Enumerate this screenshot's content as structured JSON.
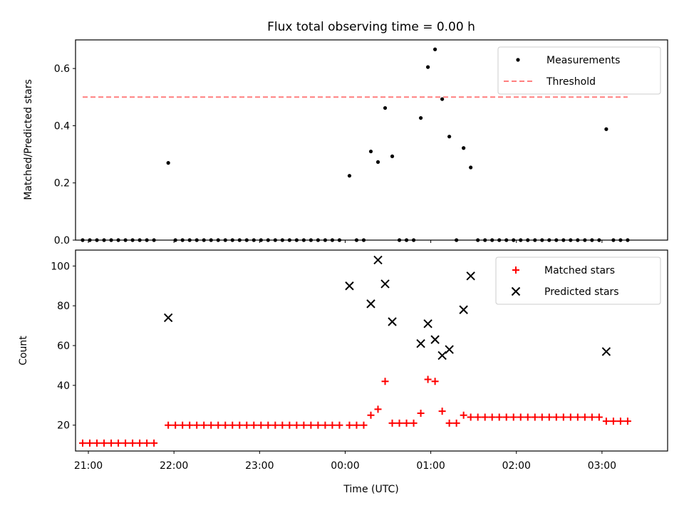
{
  "chart_data": [
    {
      "type": "scatter",
      "title": "Flux total observing time = 0.00 h",
      "xlabel": "",
      "ylabel": "Matched/Predicted stars",
      "xlim": [
        "20:51",
        "03:46"
      ],
      "ylim": [
        0,
        0.7
      ],
      "y_ticks": [
        0.0,
        0.2,
        0.4,
        0.6
      ],
      "y_tick_labels": [
        "0.0",
        "0.2",
        "0.4",
        "0.6"
      ],
      "x_tick_labels": [],
      "legend_position": "top-right",
      "series": [
        {
          "name": "Measurements",
          "marker": "dot",
          "color": "#000000",
          "points": [
            [
              "20:56",
              0
            ],
            [
              "21:01",
              0
            ],
            [
              "21:06",
              0
            ],
            [
              "21:11",
              0
            ],
            [
              "21:16",
              0
            ],
            [
              "21:21",
              0
            ],
            [
              "21:26",
              0
            ],
            [
              "21:31",
              0
            ],
            [
              "21:36",
              0
            ],
            [
              "21:41",
              0
            ],
            [
              "21:46",
              0
            ],
            [
              "21:56",
              0.27
            ],
            [
              "22:01",
              0
            ],
            [
              "22:06",
              0
            ],
            [
              "22:11",
              0
            ],
            [
              "22:16",
              0
            ],
            [
              "22:21",
              0
            ],
            [
              "22:26",
              0
            ],
            [
              "22:31",
              0
            ],
            [
              "22:36",
              0
            ],
            [
              "22:41",
              0
            ],
            [
              "22:46",
              0
            ],
            [
              "22:51",
              0
            ],
            [
              "22:56",
              0
            ],
            [
              "23:01",
              0
            ],
            [
              "23:06",
              0
            ],
            [
              "23:11",
              0
            ],
            [
              "23:16",
              0
            ],
            [
              "23:21",
              0
            ],
            [
              "23:26",
              0
            ],
            [
              "23:31",
              0
            ],
            [
              "23:36",
              0
            ],
            [
              "23:41",
              0
            ],
            [
              "23:46",
              0
            ],
            [
              "23:51",
              0
            ],
            [
              "23:56",
              0
            ],
            [
              "00:03",
              0.225
            ],
            [
              "00:08",
              0
            ],
            [
              "00:13",
              0
            ],
            [
              "00:18",
              0.31
            ],
            [
              "00:23",
              0.273
            ],
            [
              "00:28",
              0.462
            ],
            [
              "00:33",
              0.293
            ],
            [
              "00:38",
              0
            ],
            [
              "00:43",
              0
            ],
            [
              "00:48",
              0
            ],
            [
              "00:53",
              0.427
            ],
            [
              "00:58",
              0.605
            ],
            [
              "01:03",
              0.667
            ],
            [
              "01:08",
              0.493
            ],
            [
              "01:13",
              0.362
            ],
            [
              "01:18",
              0
            ],
            [
              "01:23",
              0.322
            ],
            [
              "01:28",
              0.254
            ],
            [
              "01:33",
              0
            ],
            [
              "01:38",
              0
            ],
            [
              "01:43",
              0
            ],
            [
              "01:48",
              0
            ],
            [
              "01:53",
              0
            ],
            [
              "01:58",
              0
            ],
            [
              "02:03",
              0
            ],
            [
              "02:08",
              0
            ],
            [
              "02:13",
              0
            ],
            [
              "02:18",
              0
            ],
            [
              "02:23",
              0
            ],
            [
              "02:28",
              0
            ],
            [
              "02:33",
              0
            ],
            [
              "02:38",
              0
            ],
            [
              "02:43",
              0
            ],
            [
              "02:48",
              0
            ],
            [
              "02:53",
              0
            ],
            [
              "02:58",
              0
            ],
            [
              "03:03",
              0.388
            ],
            [
              "03:08",
              0
            ],
            [
              "03:13",
              0
            ],
            [
              "03:18",
              0
            ]
          ]
        },
        {
          "name": "Threshold",
          "marker": "dashed-line",
          "color": "#ff7f7f",
          "points": [
            [
              "20:56",
              0.5
            ],
            [
              "03:18",
              0.5
            ]
          ]
        }
      ]
    },
    {
      "type": "scatter",
      "title": "",
      "xlabel": "Time (UTC)",
      "ylabel": "Count",
      "xlim": [
        "20:51",
        "03:46"
      ],
      "ylim": [
        7,
        108
      ],
      "y_ticks": [
        20,
        40,
        60,
        80,
        100
      ],
      "y_tick_labels": [
        "20",
        "40",
        "60",
        "80",
        "100"
      ],
      "x_ticks": [
        "21:00",
        "22:00",
        "23:00",
        "00:00",
        "01:00",
        "02:00",
        "03:00"
      ],
      "x_tick_labels": [
        "21:00",
        "22:00",
        "23:00",
        "00:00",
        "01:00",
        "02:00",
        "03:00"
      ],
      "legend_position": "top-right",
      "series": [
        {
          "name": "Matched stars",
          "marker": "plus",
          "color": "#ff0000",
          "points": [
            [
              "20:56",
              11
            ],
            [
              "21:01",
              11
            ],
            [
              "21:06",
              11
            ],
            [
              "21:11",
              11
            ],
            [
              "21:16",
              11
            ],
            [
              "21:21",
              11
            ],
            [
              "21:26",
              11
            ],
            [
              "21:31",
              11
            ],
            [
              "21:36",
              11
            ],
            [
              "21:41",
              11
            ],
            [
              "21:46",
              11
            ],
            [
              "21:56",
              20
            ],
            [
              "22:01",
              20
            ],
            [
              "22:06",
              20
            ],
            [
              "22:11",
              20
            ],
            [
              "22:16",
              20
            ],
            [
              "22:21",
              20
            ],
            [
              "22:26",
              20
            ],
            [
              "22:31",
              20
            ],
            [
              "22:36",
              20
            ],
            [
              "22:41",
              20
            ],
            [
              "22:46",
              20
            ],
            [
              "22:51",
              20
            ],
            [
              "22:56",
              20
            ],
            [
              "23:01",
              20
            ],
            [
              "23:06",
              20
            ],
            [
              "23:11",
              20
            ],
            [
              "23:16",
              20
            ],
            [
              "23:21",
              20
            ],
            [
              "23:26",
              20
            ],
            [
              "23:31",
              20
            ],
            [
              "23:36",
              20
            ],
            [
              "23:41",
              20
            ],
            [
              "23:46",
              20
            ],
            [
              "23:51",
              20
            ],
            [
              "23:56",
              20
            ],
            [
              "00:03",
              20
            ],
            [
              "00:08",
              20
            ],
            [
              "00:13",
              20
            ],
            [
              "00:18",
              25
            ],
            [
              "00:23",
              28
            ],
            [
              "00:28",
              42
            ],
            [
              "00:33",
              21
            ],
            [
              "00:38",
              21
            ],
            [
              "00:43",
              21
            ],
            [
              "00:48",
              21
            ],
            [
              "00:53",
              26
            ],
            [
              "00:58",
              43
            ],
            [
              "01:03",
              42
            ],
            [
              "01:08",
              27
            ],
            [
              "01:13",
              21
            ],
            [
              "01:18",
              21
            ],
            [
              "01:23",
              25
            ],
            [
              "01:28",
              24
            ],
            [
              "01:33",
              24
            ],
            [
              "01:38",
              24
            ],
            [
              "01:43",
              24
            ],
            [
              "01:48",
              24
            ],
            [
              "01:53",
              24
            ],
            [
              "01:58",
              24
            ],
            [
              "02:03",
              24
            ],
            [
              "02:08",
              24
            ],
            [
              "02:13",
              24
            ],
            [
              "02:18",
              24
            ],
            [
              "02:23",
              24
            ],
            [
              "02:28",
              24
            ],
            [
              "02:33",
              24
            ],
            [
              "02:38",
              24
            ],
            [
              "02:43",
              24
            ],
            [
              "02:48",
              24
            ],
            [
              "02:53",
              24
            ],
            [
              "02:58",
              24
            ],
            [
              "03:03",
              22
            ],
            [
              "03:08",
              22
            ],
            [
              "03:13",
              22
            ],
            [
              "03:18",
              22
            ]
          ]
        },
        {
          "name": "Predicted stars",
          "marker": "x",
          "color": "#000000",
          "points": [
            [
              "21:56",
              74
            ],
            [
              "00:03",
              90
            ],
            [
              "00:18",
              81
            ],
            [
              "00:23",
              103
            ],
            [
              "00:28",
              91
            ],
            [
              "00:33",
              72
            ],
            [
              "00:53",
              61
            ],
            [
              "00:58",
              71
            ],
            [
              "01:03",
              63
            ],
            [
              "01:08",
              55
            ],
            [
              "01:13",
              58
            ],
            [
              "01:23",
              78
            ],
            [
              "01:28",
              95
            ],
            [
              "03:03",
              57
            ]
          ]
        }
      ]
    }
  ]
}
